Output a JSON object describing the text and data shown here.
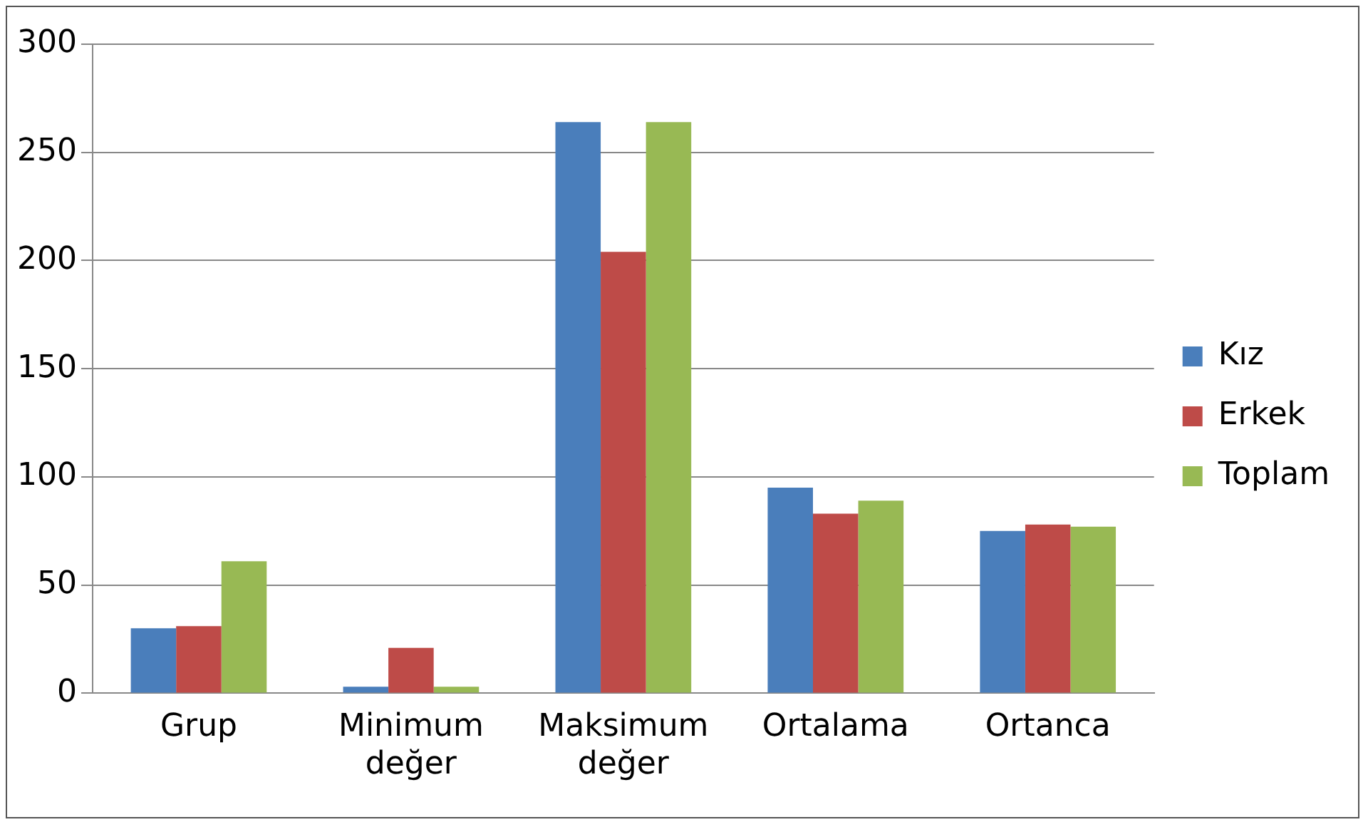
{
  "chart_data": {
    "type": "bar",
    "categories": [
      "Grup",
      "Minimum değer",
      "Maksimum değer",
      "Ortalama",
      "Ortanca"
    ],
    "series": [
      {
        "name": "Kız",
        "color": "#4a7ebb",
        "values": [
          30,
          3,
          264,
          95,
          75
        ]
      },
      {
        "name": "Erkek",
        "color": "#be4b48",
        "values": [
          31,
          21,
          204,
          83,
          78
        ]
      },
      {
        "name": "Toplam",
        "color": "#98b954",
        "values": [
          61,
          3,
          264,
          89,
          77
        ]
      }
    ],
    "ylim": [
      0,
      300
    ],
    "yticks": [
      0,
      50,
      100,
      150,
      200,
      250,
      300
    ],
    "grid": "y",
    "legend": "right"
  }
}
